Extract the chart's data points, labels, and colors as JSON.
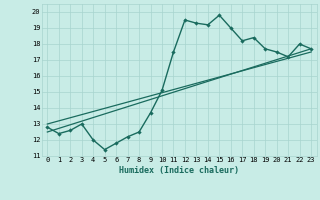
{
  "xlabel": "Humidex (Indice chaleur)",
  "background_color": "#c8ece6",
  "line_color": "#1a6b5e",
  "grid_color": "#a8d4ce",
  "line1_x": [
    0,
    1,
    2,
    3,
    4,
    5,
    6,
    7,
    8,
    9,
    10,
    11,
    12,
    13,
    14,
    15,
    16,
    17,
    18,
    19,
    20,
    21,
    22,
    23
  ],
  "line1_y": [
    12.8,
    12.4,
    12.6,
    13.0,
    12.0,
    11.4,
    11.8,
    12.2,
    12.5,
    13.7,
    15.1,
    17.5,
    19.5,
    19.3,
    19.2,
    19.8,
    19.0,
    18.2,
    18.4,
    17.7,
    17.5,
    17.2,
    18.0,
    17.7
  ],
  "line2_x": [
    0,
    23
  ],
  "line2_y": [
    12.5,
    17.7
  ],
  "line3_x": [
    0,
    23
  ],
  "line3_y": [
    13.0,
    17.5
  ],
  "xlim": [
    -0.5,
    23.5
  ],
  "ylim": [
    11,
    20.5
  ],
  "yticks": [
    11,
    12,
    13,
    14,
    15,
    16,
    17,
    18,
    19,
    20
  ],
  "xticks": [
    0,
    1,
    2,
    3,
    4,
    5,
    6,
    7,
    8,
    9,
    10,
    11,
    12,
    13,
    14,
    15,
    16,
    17,
    18,
    19,
    20,
    21,
    22,
    23
  ],
  "tick_fontsize": 5,
  "xlabel_fontsize": 6
}
